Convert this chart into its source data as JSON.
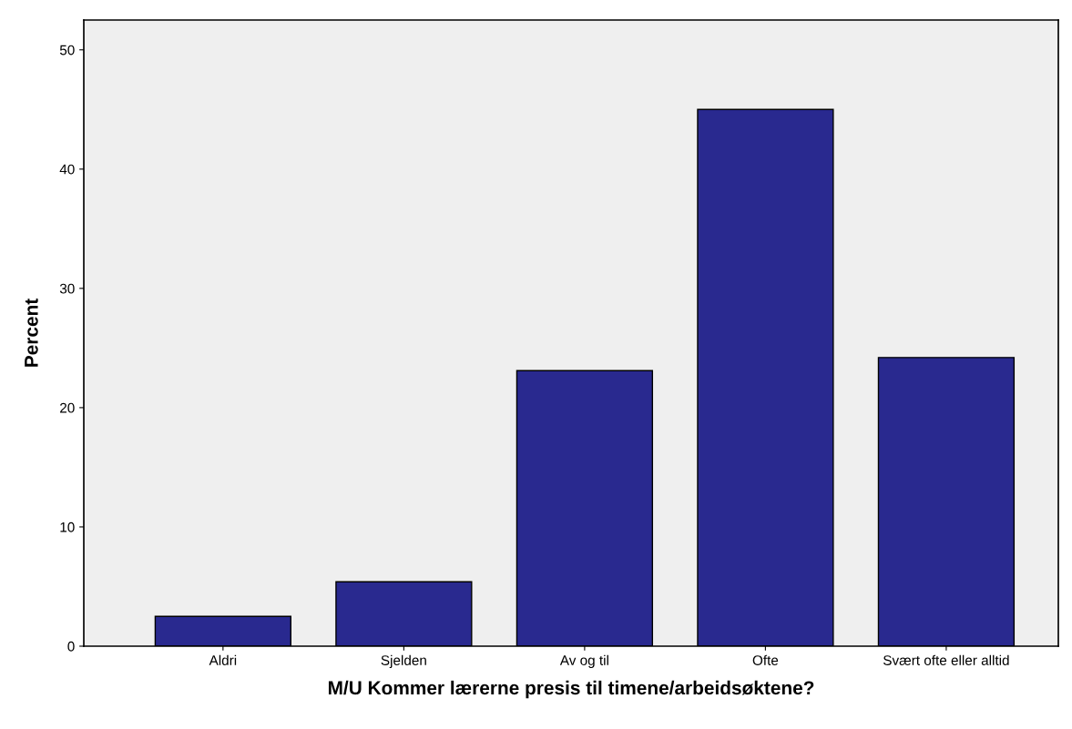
{
  "chart_data": {
    "type": "bar",
    "xlabel": "M/U Kommer lærerne presis til timene/arbeidsøktene?",
    "ylabel": "Percent",
    "categories": [
      "Aldri",
      "Sjelden",
      "Av og til",
      "Ofte",
      "Svært ofte eller alltid"
    ],
    "values": [
      2.5,
      5.4,
      23.1,
      45.0,
      24.2
    ],
    "color": "#29298f",
    "ylim": [
      0,
      52.5
    ],
    "yticks": [
      0,
      10,
      20,
      30,
      40,
      50
    ],
    "grid": false,
    "legend": false
  }
}
